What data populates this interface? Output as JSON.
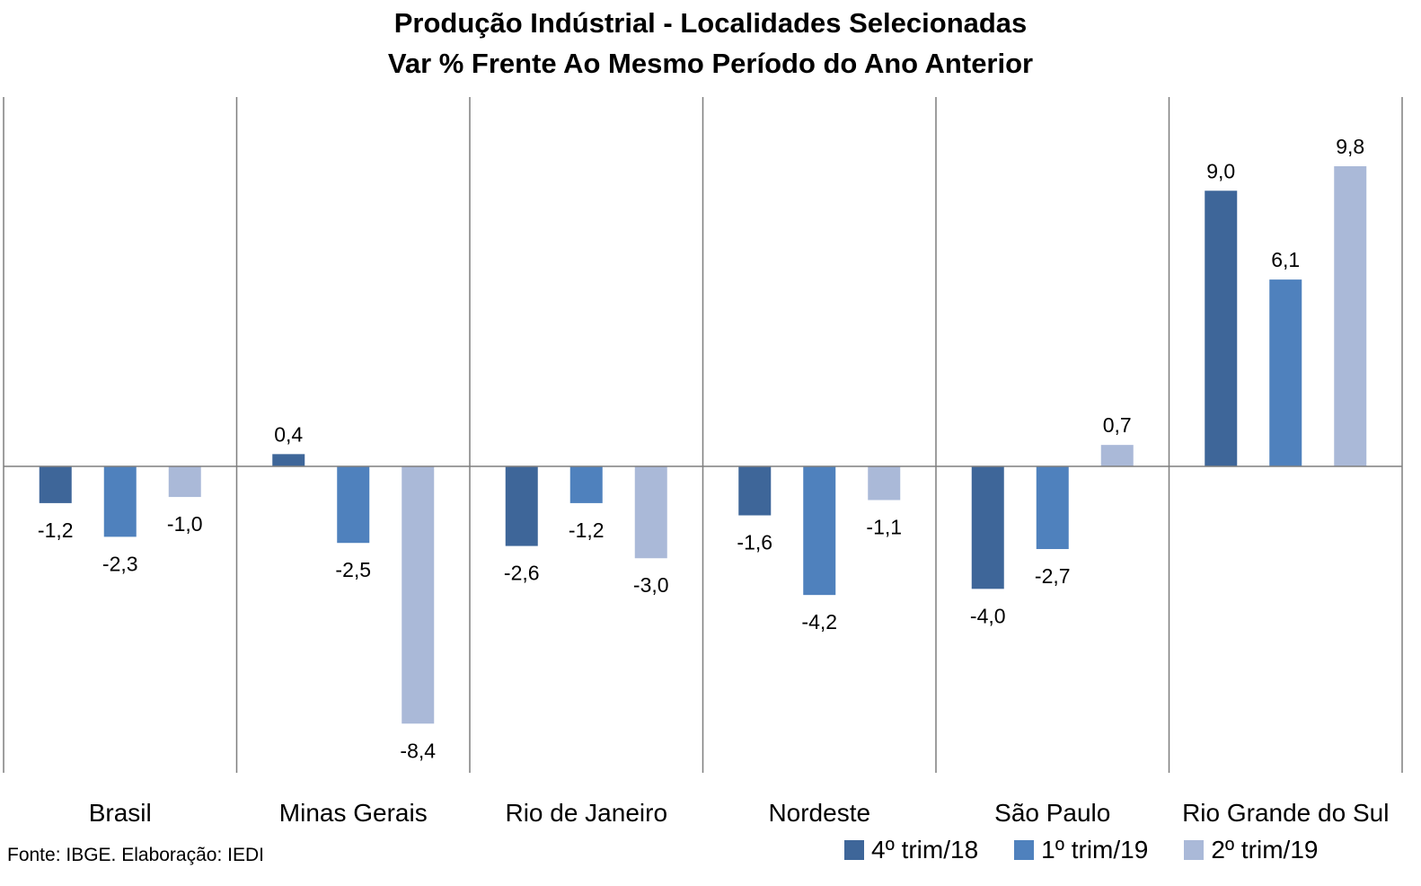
{
  "chart_data": {
    "type": "bar",
    "title": "Produção Indústrial - Localidades Selecionadas",
    "subtitle": "Var % Frente Ao Mesmo Período do Ano Anterior",
    "categories": [
      "Brasil",
      "Minas Gerais",
      "Rio de Janeiro",
      "Nordeste",
      "São Paulo",
      "Rio Grande do Sul"
    ],
    "series": [
      {
        "name": "4º trim/18",
        "color": "#3e6699",
        "values": [
          -1.2,
          0.4,
          -2.6,
          -1.6,
          -4.0,
          9.0
        ],
        "labels": [
          "-1,2",
          "0,4",
          "-2,6",
          "-1,6",
          "-4,0",
          "9,0"
        ]
      },
      {
        "name": "1º trim/19",
        "color": "#4f81bd",
        "values": [
          -2.3,
          -2.5,
          -1.2,
          -4.2,
          -2.7,
          6.1
        ],
        "labels": [
          "-2,3",
          "-2,5",
          "-1,2",
          "-4,2",
          "-2,7",
          "6,1"
        ]
      },
      {
        "name": "2º trim/19",
        "color": "#aab9d8",
        "values": [
          -1.0,
          -8.4,
          -3.0,
          -1.1,
          0.7,
          9.8
        ],
        "labels": [
          "-1,0",
          "-8,4",
          "-3,0",
          "-1,1",
          "0,7",
          "9,8"
        ]
      }
    ],
    "ylim": [
      -10,
      12.4
    ],
    "grid": false,
    "legend_position": "bottom-right"
  },
  "source": "Fonte: IBGE. Elaboração: IEDI"
}
